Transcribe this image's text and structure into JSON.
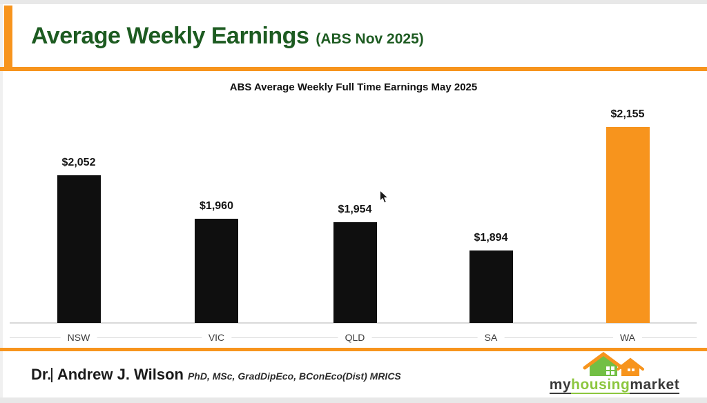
{
  "header": {
    "title": "Average Weekly Earnings",
    "subtitle": "(ABS Nov 2025)"
  },
  "chart_data": {
    "type": "bar",
    "title": "ABS Average Weekly Full Time Earnings May 2025",
    "categories": [
      "NSW",
      "VIC",
      "QLD",
      "SA",
      "WA"
    ],
    "values": [
      2052,
      1960,
      1954,
      1894,
      2155
    ],
    "value_labels": [
      "$2,052",
      "$1,960",
      "$1,954",
      "$1,894",
      "$2,155"
    ],
    "bar_colors": [
      "#0f0f0f",
      "#0f0f0f",
      "#0f0f0f",
      "#0f0f0f",
      "#F7941D"
    ],
    "xlabel": "",
    "ylabel": "",
    "ylim": [
      1740,
      2155
    ],
    "grid": false,
    "legend": false,
    "data_labels": true
  },
  "footer": {
    "author_prefix": "Dr.",
    "author_name": "Andrew J. Wilson",
    "credentials": "PhD, MSc, GradDipEco, BConEco(Dist) MRICS",
    "logo_text": {
      "part1": "my",
      "part2": "housing",
      "part3": "market"
    }
  },
  "colors": {
    "accent_orange": "#F7941D",
    "title_green": "#1d5b21",
    "bar_black": "#0f0f0f",
    "logo_green": "#8cc63e",
    "house_green": "#72bf44",
    "axis_gray": "#d9d9d9"
  }
}
